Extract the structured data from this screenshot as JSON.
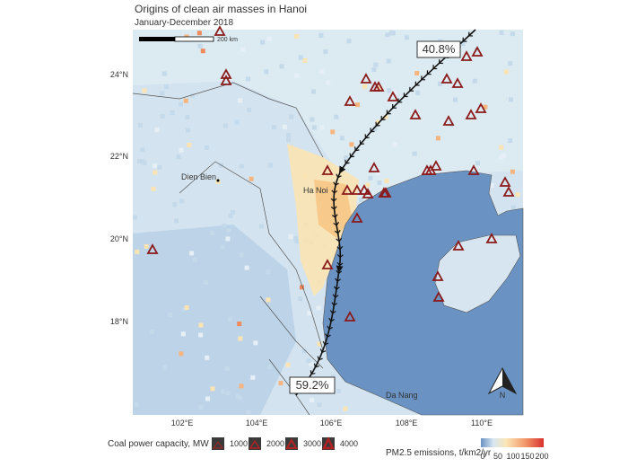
{
  "header": {
    "title": "Origins of clean air masses in Hanoi",
    "subtitle": "January-December 2018"
  },
  "map": {
    "scale_label": "200 km",
    "lat_labels": [
      "24°N",
      "22°N",
      "20°N",
      "18°N"
    ],
    "lon_labels": [
      "102°E",
      "104°E",
      "106°E",
      "108°E",
      "110°E"
    ],
    "places": [
      "Dien Bien",
      "Ha Noi",
      "Da Nang"
    ],
    "trajectories": [
      "40.8%",
      "59.2%"
    ],
    "north": "N"
  },
  "legend": {
    "plants_title": "Coal power capacity, MW",
    "plant_sizes": [
      "1000",
      "2000",
      "3000",
      "4000"
    ],
    "emissions_title": "PM2.5 emissions, t/km2/yr",
    "emission_ticks": [
      "0",
      "50",
      "100",
      "150",
      "200"
    ]
  }
}
